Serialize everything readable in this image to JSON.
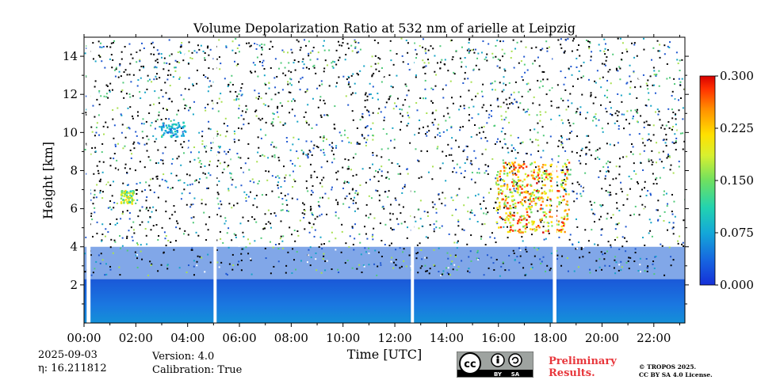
{
  "chart_data": {
    "type": "heatmap",
    "title": "Volume Depolarization Ratio at 532 nm of arielle at Leipzig",
    "xlabel": "Time [UTC]",
    "ylabel": "Height [km]",
    "xlim_hours": [
      0,
      23.2
    ],
    "ylim_km": [
      0,
      15
    ],
    "x_ticks": [
      {
        "hour": 0,
        "label": "00:00"
      },
      {
        "hour": 2,
        "label": "02:00"
      },
      {
        "hour": 4,
        "label": "04:00"
      },
      {
        "hour": 6,
        "label": "06:00"
      },
      {
        "hour": 8,
        "label": "08:00"
      },
      {
        "hour": 10,
        "label": "10:00"
      },
      {
        "hour": 12,
        "label": "12:00"
      },
      {
        "hour": 14,
        "label": "14:00"
      },
      {
        "hour": 16,
        "label": "16:00"
      },
      {
        "hour": 18,
        "label": "18:00"
      },
      {
        "hour": 20,
        "label": "20:00"
      },
      {
        "hour": 22,
        "label": "22:00"
      }
    ],
    "y_ticks": [
      {
        "km": 2,
        "label": "2"
      },
      {
        "km": 4,
        "label": "4"
      },
      {
        "km": 6,
        "label": "6"
      },
      {
        "km": 8,
        "label": "8"
      },
      {
        "km": 10,
        "label": "10"
      },
      {
        "km": 12,
        "label": "12"
      },
      {
        "km": 14,
        "label": "14"
      }
    ],
    "colorbar": {
      "min": 0.0,
      "max": 0.3,
      "ticks": [
        {
          "value": 0.0,
          "label": "0.000"
        },
        {
          "value": 0.075,
          "label": "0.075"
        },
        {
          "value": 0.15,
          "label": "0.150"
        },
        {
          "value": 0.225,
          "label": "0.225"
        },
        {
          "value": 0.3,
          "label": "0.300"
        }
      ],
      "stops": [
        "#1530d8",
        "#1666e0",
        "#14a8d8",
        "#22d3b0",
        "#6fe060",
        "#d8f030",
        "#ffe000",
        "#ff9000",
        "#ff3000",
        "#d80000"
      ]
    },
    "data_gaps_hours": [
      [
        0.1,
        0.25
      ],
      [
        5.0,
        5.12
      ],
      [
        12.62,
        12.74
      ],
      [
        18.1,
        18.24
      ]
    ],
    "features": [
      {
        "name": "boundary layer",
        "hour_start": 0,
        "hour_end": 23.2,
        "top_km": 2.3,
        "value": 0.0
      },
      {
        "name": "noise band",
        "hour_start": 0,
        "hour_end": 23.2,
        "bottom_km": 2.5,
        "top_km": 15,
        "value": 0.06
      },
      {
        "name": "high cloud",
        "hour_start": 15.9,
        "hour_end": 18.7,
        "bottom_km": 4.8,
        "top_km": 8.5,
        "value": 0.22
      },
      {
        "name": "aerosol layer",
        "hour_start": 1.4,
        "hour_end": 1.9,
        "bottom_km": 6.3,
        "top_km": 7.0,
        "value": 0.16
      },
      {
        "name": "thin cirrus",
        "hour_start": 2.9,
        "hour_end": 3.9,
        "bottom_km": 9.8,
        "top_km": 10.6,
        "value": 0.08
      }
    ]
  },
  "meta": {
    "date": "2025-09-03",
    "eta_label": "η: 16.211812",
    "version": "Version: 4.0",
    "calibration": "Calibration: True"
  },
  "license": {
    "cc_label": "cc",
    "by_label": "BY",
    "sa_label": "SA",
    "preliminary_line1": "Preliminary",
    "preliminary_line2": "Results.",
    "copyright_line1": "© TROPOS 2025.",
    "copyright_line2": "CC BY SA 4.0 License."
  }
}
